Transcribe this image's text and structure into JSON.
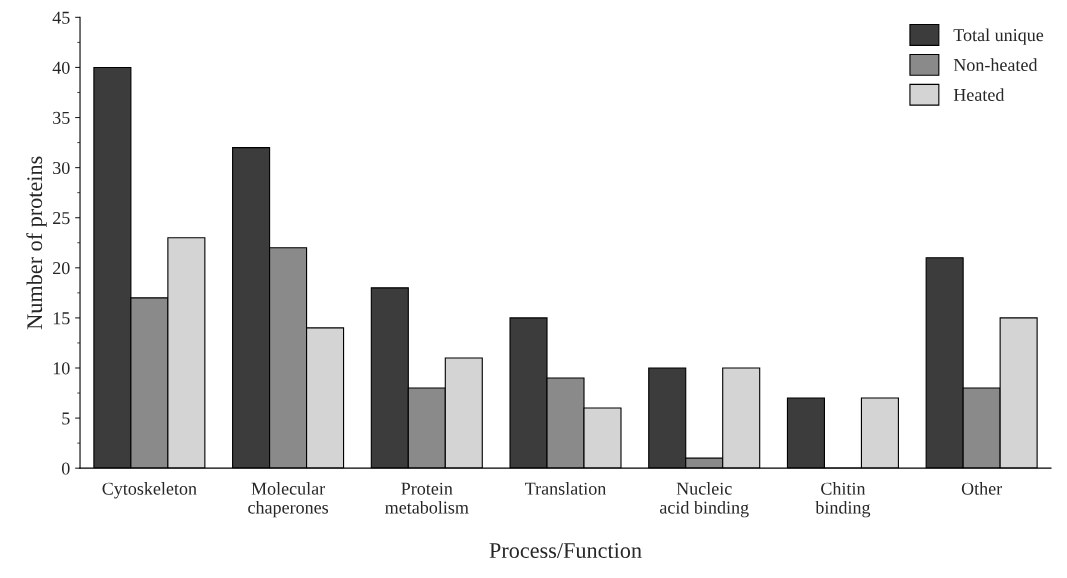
{
  "chart_data": {
    "type": "bar",
    "xlabel": "Process/Function",
    "ylabel": "Number of proteins",
    "categories": [
      "Cytoskeleton",
      "Molecular\nchaperones",
      "Protein\nmetabolism",
      "Translation",
      "Nucleic\nacid binding",
      "Chitin\nbinding",
      "Other"
    ],
    "series": [
      {
        "name": "Total unique",
        "color": "#3c3c3c",
        "values": [
          40,
          32,
          18,
          15,
          10,
          7,
          21
        ]
      },
      {
        "name": "Non-heated",
        "color": "#8a8a8a",
        "values": [
          17,
          22,
          8,
          9,
          1,
          0,
          8
        ]
      },
      {
        "name": "Heated",
        "color": "#d4d4d4",
        "values": [
          23,
          14,
          11,
          6,
          10,
          7,
          15
        ]
      }
    ],
    "ylim": [
      0,
      45
    ],
    "yticks": [
      0,
      5,
      10,
      15,
      20,
      25,
      30,
      35,
      40,
      45
    ],
    "grid": false,
    "legend": "top right"
  }
}
